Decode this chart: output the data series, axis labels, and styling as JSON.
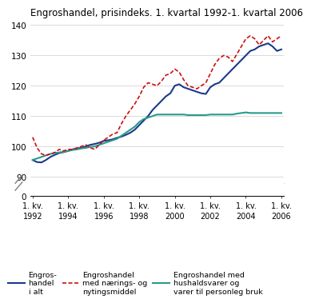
{
  "title": "Engroshandel, prisindeks. 1. kvartal 1992-1. kvartal 2006",
  "ylim_main": [
    88,
    140
  ],
  "ylim_break": [
    0,
    6
  ],
  "yticks": [
    90,
    100,
    110,
    120,
    130,
    140
  ],
  "background_color": "#ffffff",
  "grid_color": "#cccccc",
  "series1_color": "#1a3a8a",
  "series2_color": "#cc1111",
  "series3_color": "#2a9a8a",
  "legend1": "Engros-\nhandel\ni alt",
  "legend2": "Engroshandel\nmed nærings- og\nnytingsmiddel",
  "legend3": "Engroshandel med\nhushaldsvarer og\nvarer til personleg bruk",
  "x_tick_labels": [
    "1. kv.\n1992",
    "1. kv.\n1994",
    "1. kv.\n1996",
    "1. kv.\n1998",
    "1. kv.\n2000",
    "1. kv.\n2002",
    "1. kv.\n2004",
    "1. kv.\n2006"
  ],
  "x_tick_positions": [
    0,
    8,
    16,
    24,
    32,
    40,
    48,
    56
  ],
  "series1": [
    95.5,
    94.8,
    94.7,
    95.5,
    96.5,
    97.2,
    97.8,
    98.1,
    98.5,
    99.0,
    99.3,
    99.5,
    100.0,
    100.5,
    100.8,
    101.2,
    101.8,
    102.0,
    102.3,
    102.8,
    103.2,
    103.8,
    104.5,
    105.5,
    107.0,
    108.5,
    110.0,
    112.0,
    113.5,
    115.0,
    116.5,
    117.5,
    120.0,
    120.5,
    119.5,
    119.0,
    118.5,
    118.0,
    117.5,
    117.3,
    119.5,
    120.5,
    121.0,
    122.5,
    124.0,
    125.5,
    127.0,
    128.5,
    130.0,
    131.5,
    132.0,
    133.0,
    133.5,
    134.0,
    133.0,
    131.5,
    132.0
  ],
  "series2": [
    103.0,
    99.5,
    97.5,
    97.0,
    97.5,
    98.0,
    99.0,
    98.5,
    99.0,
    99.0,
    99.5,
    100.0,
    100.5,
    99.5,
    99.0,
    100.5,
    102.0,
    103.0,
    104.0,
    104.5,
    107.5,
    110.0,
    112.0,
    114.0,
    116.5,
    119.5,
    121.0,
    120.5,
    120.0,
    121.5,
    123.5,
    124.0,
    125.5,
    124.5,
    122.0,
    120.0,
    119.5,
    119.0,
    120.0,
    121.0,
    124.0,
    127.0,
    129.0,
    130.0,
    129.5,
    128.0,
    130.5,
    133.0,
    135.5,
    136.5,
    135.5,
    133.5,
    135.0,
    136.5,
    134.5,
    135.5,
    136.5
  ],
  "series3": [
    95.5,
    96.0,
    96.5,
    97.0,
    97.5,
    97.8,
    98.0,
    98.2,
    98.5,
    98.8,
    99.0,
    99.3,
    99.5,
    99.8,
    100.0,
    100.5,
    101.0,
    101.5,
    102.0,
    102.5,
    103.5,
    104.5,
    105.5,
    106.5,
    108.0,
    109.0,
    109.5,
    110.0,
    110.5,
    110.5,
    110.5,
    110.5,
    110.5,
    110.5,
    110.5,
    110.3,
    110.3,
    110.3,
    110.3,
    110.3,
    110.5,
    110.5,
    110.5,
    110.5,
    110.5,
    110.5,
    110.8,
    111.0,
    111.2,
    111.0,
    111.0,
    111.0,
    111.0,
    111.0,
    111.0,
    111.0,
    111.0
  ]
}
